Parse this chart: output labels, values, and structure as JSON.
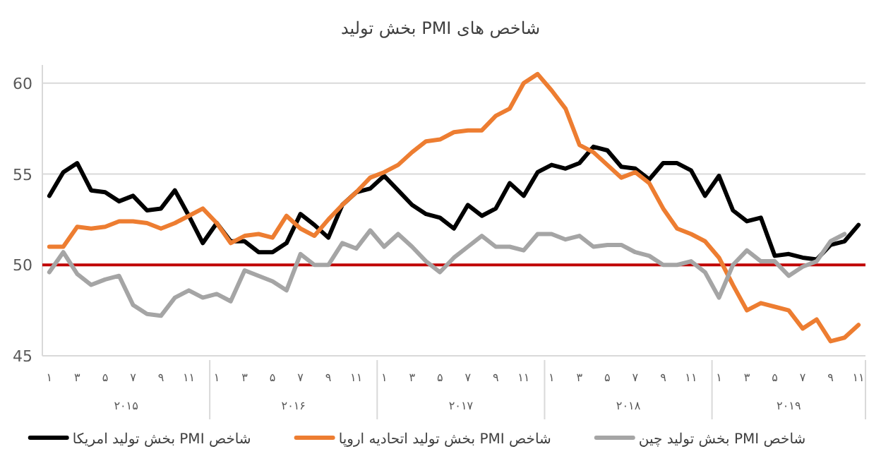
{
  "chart_data": {
    "type": "line",
    "title": "شاخص های PMI بخش تولید",
    "categories": [
      "۱",
      null,
      "۳",
      null,
      "۵",
      null,
      "۷",
      null,
      "۹",
      null,
      "۱۱",
      null,
      "۱",
      null,
      "۳",
      null,
      "۵",
      null,
      "۷",
      null,
      "۹",
      null,
      "۱۱",
      null,
      "۱",
      null,
      "۳",
      null,
      "۵",
      null,
      "۷",
      null,
      "۹",
      null,
      "۱۱",
      null,
      "۱",
      null,
      "۳",
      null,
      "۵",
      null,
      "۷",
      null,
      "۹",
      null,
      "۱۱",
      null,
      "۱",
      null,
      "۳",
      null,
      "۵",
      null,
      "۷",
      null,
      "۹",
      null,
      "۱۱"
    ],
    "annotations": [
      "۲۰۱۵",
      "۲۰۱۶",
      "۲۰۱۷",
      "۲۰۱۸",
      "۲۰۱۹"
    ],
    "series": [
      {
        "name": "شاخص PMI بخش تولید امریکا",
        "color": "#000000",
        "values": [
          53.8,
          55.1,
          55.6,
          54.1,
          54.0,
          53.5,
          53.8,
          53.0,
          53.1,
          54.1,
          52.7,
          51.2,
          52.3,
          51.3,
          51.3,
          50.7,
          50.7,
          51.2,
          52.8,
          52.2,
          51.5,
          53.3,
          54.0,
          54.2,
          54.9,
          54.1,
          53.3,
          52.8,
          52.6,
          52.0,
          53.3,
          52.7,
          53.1,
          54.5,
          53.8,
          55.1,
          55.5,
          55.3,
          55.6,
          56.5,
          56.3,
          55.4,
          55.3,
          54.7,
          55.6,
          55.6,
          55.2,
          53.8,
          54.9,
          53.0,
          52.4,
          52.6,
          50.5,
          50.6,
          50.4,
          50.3,
          51.1,
          51.3,
          52.2
        ]
      },
      {
        "name": "شاخص PMI بخش تولید اتحادیه اروپا",
        "color": "#ed7d31",
        "values": [
          51.0,
          51.0,
          52.1,
          52.0,
          52.1,
          52.4,
          52.4,
          52.3,
          52.0,
          52.3,
          52.7,
          53.1,
          52.3,
          51.2,
          51.6,
          51.7,
          51.5,
          52.7,
          52.0,
          51.6,
          52.5,
          53.3,
          54.0,
          54.8,
          55.1,
          55.5,
          56.2,
          56.8,
          56.9,
          57.3,
          57.4,
          57.4,
          58.2,
          58.6,
          60.0,
          60.5,
          59.6,
          58.6,
          56.6,
          56.2,
          55.5,
          54.8,
          55.1,
          54.5,
          53.1,
          52.0,
          51.7,
          51.3,
          50.4,
          48.9,
          47.5,
          47.9,
          47.7,
          47.5,
          46.5,
          47.0,
          45.8,
          46.0,
          46.7
        ]
      },
      {
        "name": "شاخص PMI بخش تولید چین",
        "color": "#a5a5a5",
        "values": [
          49.6,
          50.7,
          49.5,
          48.9,
          49.2,
          49.4,
          47.8,
          47.3,
          47.2,
          48.2,
          48.6,
          48.2,
          48.4,
          48.0,
          49.7,
          49.4,
          49.1,
          48.6,
          50.6,
          50.0,
          50.0,
          51.2,
          50.9,
          51.9,
          51.0,
          51.7,
          51.0,
          50.2,
          49.6,
          50.4,
          51.0,
          51.6,
          51.0,
          51.0,
          50.8,
          51.7,
          51.7,
          51.4,
          51.6,
          51.0,
          51.1,
          51.1,
          50.7,
          50.5,
          50.0,
          50.0,
          50.2,
          49.6,
          48.2,
          50.0,
          50.8,
          50.2,
          50.2,
          49.4,
          49.9,
          50.2,
          51.3,
          51.7,
          null
        ]
      }
    ],
    "ylim": [
      45,
      61
    ],
    "yticks": [
      45,
      50,
      55,
      60
    ],
    "grid": "y",
    "legend": "bottom",
    "ref_lines": [
      {
        "axis": "y",
        "value": 50,
        "color": "#c00000"
      }
    ]
  }
}
